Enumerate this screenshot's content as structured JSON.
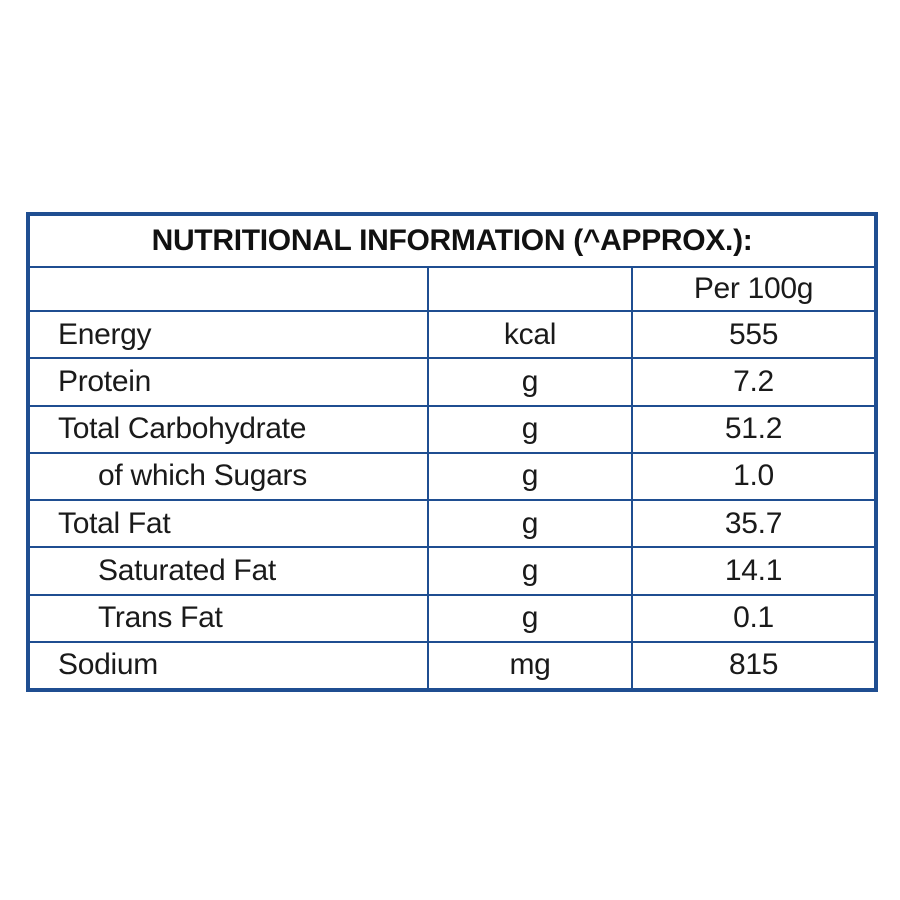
{
  "table": {
    "title": "NUTRITIONAL INFORMATION (^APPROX.):",
    "header": [
      "",
      "",
      "Per 100g"
    ],
    "rows": [
      {
        "name": "Energy",
        "unit": "kcal",
        "value": "555",
        "indent": false
      },
      {
        "name": "Protein",
        "unit": "g",
        "value": "7.2",
        "indent": false
      },
      {
        "name": "Total Carbohydrate",
        "unit": "g",
        "value": "51.2",
        "indent": false
      },
      {
        "name": "of which Sugars",
        "unit": "g",
        "value": "1.0",
        "indent": true
      },
      {
        "name": "Total Fat",
        "unit": "g",
        "value": "35.7",
        "indent": false
      },
      {
        "name": "Saturated Fat",
        "unit": "g",
        "value": "14.1",
        "indent": true
      },
      {
        "name": "Trans Fat",
        "unit": "g",
        "value": "0.1",
        "indent": true
      },
      {
        "name": "Sodium",
        "unit": "mg",
        "value": "815",
        "indent": false
      }
    ]
  },
  "colors": {
    "border": "#1f4e91",
    "text": "#1a1a1a"
  }
}
